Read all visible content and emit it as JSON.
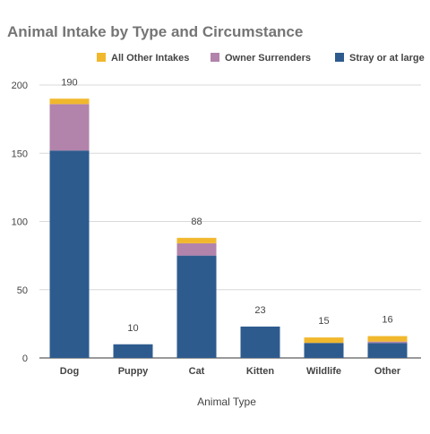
{
  "chart_data": {
    "type": "bar",
    "stacked": true,
    "title": "Animal Intake by Type and Circumstance",
    "xlabel": "Animal Type",
    "ylabel": "",
    "ylim": [
      0,
      200
    ],
    "yticks": [
      0,
      50,
      100,
      150,
      200
    ],
    "categories": [
      "Dog",
      "Puppy",
      "Cat",
      "Kitten",
      "Wildlife",
      "Other"
    ],
    "series": [
      {
        "name": "Stray or at large",
        "color": "#2e5b8e",
        "values": [
          152,
          10,
          75,
          23,
          11,
          11
        ]
      },
      {
        "name": "Owner Surrenders",
        "color": "#b283ab",
        "values": [
          34,
          0,
          9,
          0,
          0,
          1
        ]
      },
      {
        "name": "All Other Intakes",
        "color": "#f1b82d",
        "values": [
          4,
          0,
          4,
          0,
          4,
          4
        ]
      }
    ],
    "legend_order": [
      "All Other Intakes",
      "Owner Surrenders",
      "Stray or at large"
    ],
    "legend_position": "top",
    "totals": [
      190,
      10,
      88,
      23,
      15,
      16
    ],
    "grid": true
  }
}
